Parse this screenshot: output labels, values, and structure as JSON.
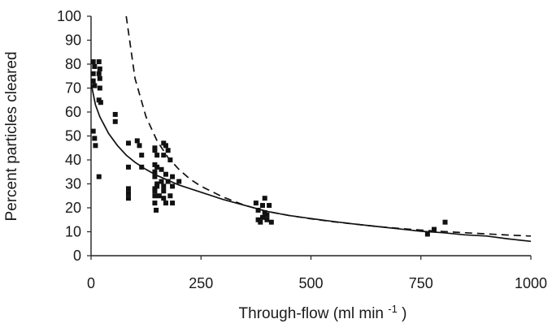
{
  "chart_data": {
    "type": "scatter",
    "title": "",
    "xlabel": "Through-flow (ml min",
    "xlabel_superscript": "-1",
    "xlabel_suffix": ")",
    "ylabel": "Percent particles cleared",
    "xlim": [
      0,
      1000
    ],
    "ylim": [
      0,
      100
    ],
    "x_ticks": [
      0,
      250,
      500,
      750,
      1000
    ],
    "y_ticks": [
      0,
      10,
      20,
      30,
      40,
      50,
      60,
      70,
      80,
      90,
      100
    ],
    "grid": false,
    "legend": false,
    "colors": {
      "points": "#111111",
      "solid_line": "#111111",
      "dashed_line": "#111111",
      "axis": "#222222"
    },
    "series": [
      {
        "type": "scatter",
        "marker": "square",
        "points": [
          [
            5,
            81
          ],
          [
            8,
            79
          ],
          [
            18,
            81
          ],
          [
            18,
            76
          ],
          [
            20,
            78
          ],
          [
            20,
            74
          ],
          [
            5,
            76
          ],
          [
            5,
            73
          ],
          [
            8,
            71
          ],
          [
            20,
            70
          ],
          [
            18,
            65
          ],
          [
            22,
            64
          ],
          [
            5,
            52
          ],
          [
            8,
            49
          ],
          [
            10,
            46
          ],
          [
            18,
            33
          ],
          [
            55,
            59
          ],
          [
            55,
            56
          ],
          [
            85,
            47
          ],
          [
            85,
            37
          ],
          [
            85,
            28
          ],
          [
            85,
            26
          ],
          [
            85,
            24
          ],
          [
            105,
            48
          ],
          [
            110,
            46
          ],
          [
            115,
            42
          ],
          [
            115,
            37
          ],
          [
            145,
            45
          ],
          [
            145,
            44
          ],
          [
            150,
            42
          ],
          [
            145,
            38
          ],
          [
            150,
            37
          ],
          [
            145,
            35
          ],
          [
            145,
            33
          ],
          [
            150,
            30
          ],
          [
            150,
            29
          ],
          [
            145,
            28
          ],
          [
            145,
            27
          ],
          [
            145,
            25
          ],
          [
            145,
            22
          ],
          [
            148,
            19
          ],
          [
            155,
            25
          ],
          [
            165,
            47
          ],
          [
            170,
            46
          ],
          [
            175,
            44
          ],
          [
            165,
            42
          ],
          [
            180,
            40
          ],
          [
            160,
            36
          ],
          [
            170,
            34
          ],
          [
            185,
            33
          ],
          [
            160,
            31
          ],
          [
            175,
            31
          ],
          [
            165,
            29
          ],
          [
            185,
            29
          ],
          [
            165,
            27
          ],
          [
            180,
            25
          ],
          [
            165,
            24
          ],
          [
            170,
            22
          ],
          [
            185,
            22
          ],
          [
            200,
            31
          ],
          [
            375,
            22
          ],
          [
            395,
            24
          ],
          [
            390,
            21
          ],
          [
            380,
            19
          ],
          [
            405,
            21
          ],
          [
            395,
            18
          ],
          [
            400,
            17
          ],
          [
            390,
            16
          ],
          [
            380,
            15
          ],
          [
            400,
            15
          ],
          [
            385,
            14
          ],
          [
            410,
            14
          ],
          [
            765,
            9
          ],
          [
            780,
            11
          ],
          [
            805,
            14
          ]
        ]
      },
      {
        "type": "line",
        "style": "solid",
        "points": [
          [
            0,
            72
          ],
          [
            10,
            63
          ],
          [
            20,
            58
          ],
          [
            40,
            51
          ],
          [
            60,
            46
          ],
          [
            80,
            42
          ],
          [
            100,
            39
          ],
          [
            125,
            36
          ],
          [
            150,
            33.5
          ],
          [
            175,
            31.5
          ],
          [
            200,
            29.5
          ],
          [
            250,
            26.5
          ],
          [
            300,
            23.5
          ],
          [
            350,
            21
          ],
          [
            400,
            18.5
          ],
          [
            450,
            16.8
          ],
          [
            500,
            15.5
          ],
          [
            550,
            14.3
          ],
          [
            600,
            13.2
          ],
          [
            650,
            12.2
          ],
          [
            700,
            11.2
          ],
          [
            750,
            10.2
          ],
          [
            800,
            9.6
          ],
          [
            850,
            8.7
          ],
          [
            900,
            8.2
          ],
          [
            950,
            7
          ],
          [
            1000,
            6
          ]
        ]
      },
      {
        "type": "line",
        "style": "dashed",
        "points": [
          [
            80,
            100
          ],
          [
            100,
            74
          ],
          [
            125,
            58
          ],
          [
            150,
            48
          ],
          [
            175,
            41
          ],
          [
            200,
            36
          ],
          [
            225,
            32
          ],
          [
            250,
            29
          ],
          [
            300,
            24.5
          ],
          [
            350,
            21
          ],
          [
            400,
            18.5
          ],
          [
            450,
            16.8
          ],
          [
            500,
            15.4
          ],
          [
            550,
            14.2
          ],
          [
            600,
            13.2
          ],
          [
            650,
            12.2
          ],
          [
            700,
            11.4
          ],
          [
            750,
            10.7
          ],
          [
            800,
            10.1
          ],
          [
            850,
            9.6
          ],
          [
            900,
            9.1
          ],
          [
            950,
            8.6
          ],
          [
            1000,
            8.2
          ]
        ]
      }
    ]
  }
}
